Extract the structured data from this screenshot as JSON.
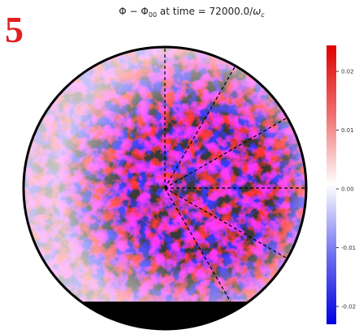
{
  "panel_label": "5",
  "title": {
    "main": "Φ − Φ",
    "sub1": "00",
    "middle": " at time = 72000.0/",
    "omega": "ω",
    "sub2": "c"
  },
  "colorbar": {
    "tick_labels": [
      "0.02",
      "0.01",
      "0.00",
      "-0.01",
      "-0.02"
    ]
  }
}
